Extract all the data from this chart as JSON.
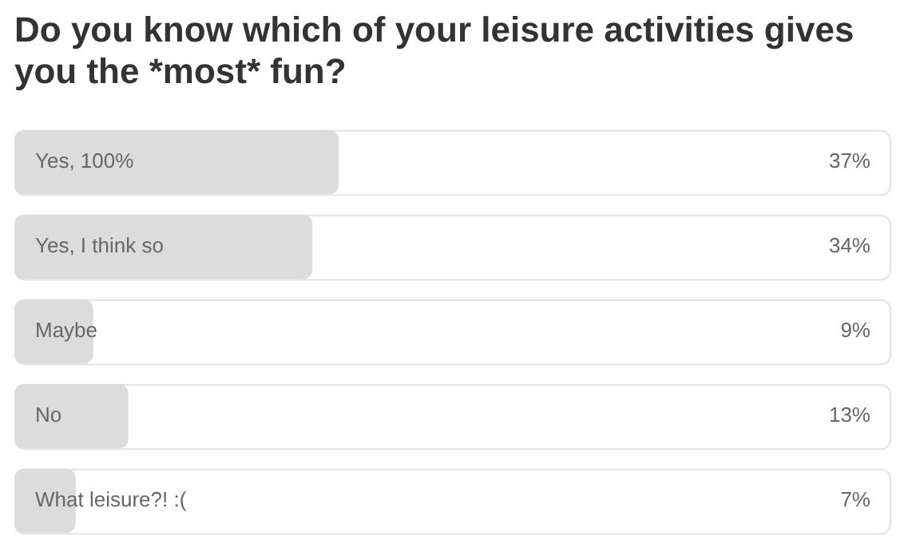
{
  "chart_data": {
    "type": "bar",
    "orientation": "horizontal",
    "title": "Do you know which of your leisure activities gives you the *most* fun?",
    "categories": [
      "Yes, 100%",
      "Yes, I think so",
      "Maybe",
      "No",
      "What leisure?! :("
    ],
    "values": [
      37,
      34,
      9,
      13,
      7
    ],
    "value_labels": [
      "37%",
      "34%",
      "9%",
      "13%",
      "7%"
    ],
    "color": "#dcdcdc",
    "xlim": [
      0,
      100
    ]
  }
}
